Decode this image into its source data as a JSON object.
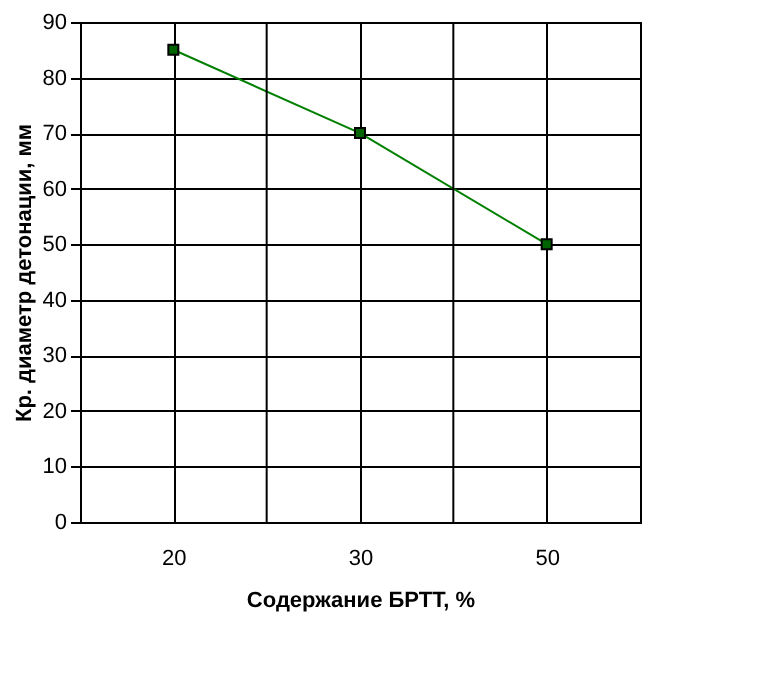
{
  "chart_data": {
    "type": "line",
    "xlabel": "Содержание БРТТ, %",
    "ylabel": "Кр. диаметр детонации, мм",
    "categories": [
      "20",
      "30",
      "50"
    ],
    "series": [
      {
        "color": "#008000",
        "values": [
          85,
          70,
          50
        ]
      }
    ],
    "ylim": [
      0,
      90
    ],
    "yticks": [
      0,
      10,
      20,
      30,
      40,
      50,
      60,
      70,
      80,
      90
    ],
    "grid": true,
    "marker": "square",
    "line_style": "solid"
  }
}
